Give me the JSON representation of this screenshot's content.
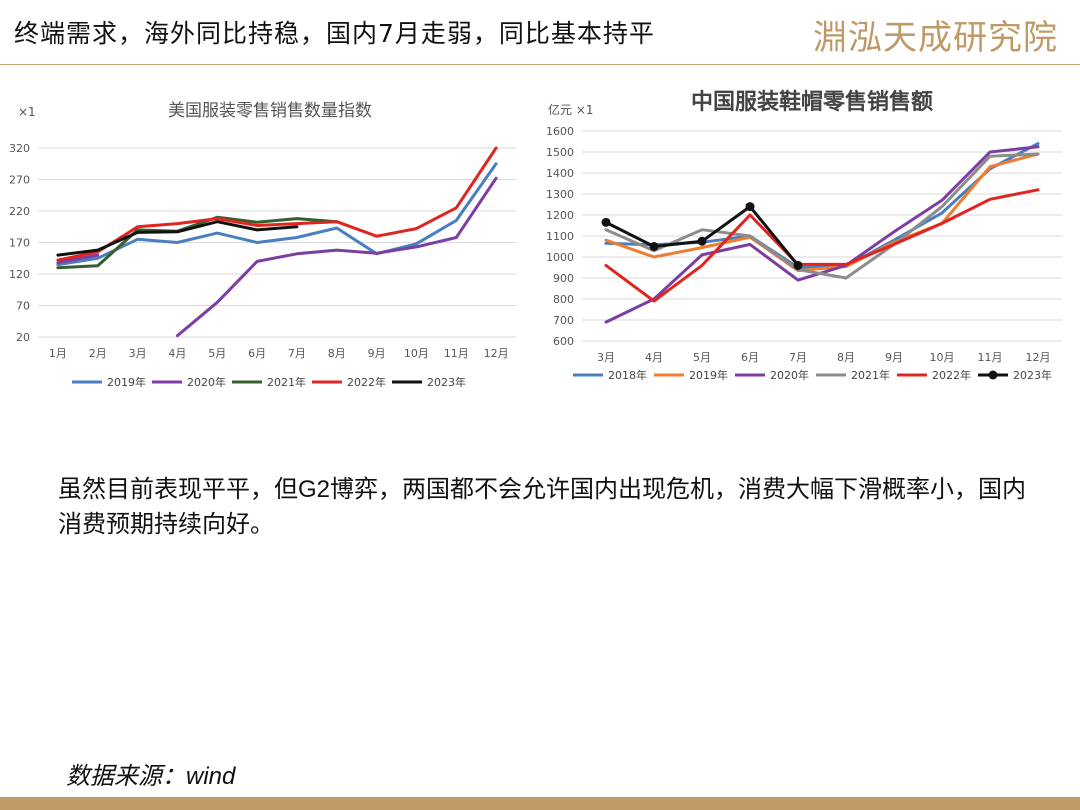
{
  "header": {
    "title": "终端需求，海外同比持稳，国内7月走弱，同比基本持平",
    "logo_text": "淵泓天成研究院",
    "accent_color": "#bf9a66"
  },
  "body_text": "虽然目前表现平平，但G2博弈，两国都不会允许国内出现危机，消费大幅下滑概率小，国内消费预期持续向好。",
  "source": "数据来源：wind",
  "chart_data": [
    {
      "type": "line",
      "title": "美国服装零售销售数量指数",
      "unit_label": "×1",
      "categories": [
        "1月",
        "2月",
        "3月",
        "4月",
        "5月",
        "6月",
        "7月",
        "8月",
        "9月",
        "10月",
        "11月",
        "12月"
      ],
      "ylim": [
        20,
        320
      ],
      "yticks": [
        20,
        70,
        120,
        170,
        220,
        270,
        320
      ],
      "grid": true,
      "legend_position": "bottom",
      "series": [
        {
          "name": "2019年",
          "color": "#4a7fbf",
          "values": [
            135,
            145,
            175,
            170,
            185,
            170,
            178,
            193,
            152,
            168,
            205,
            295
          ]
        },
        {
          "name": "2020年",
          "color": "#7d3ea3",
          "values": [
            138,
            150,
            null,
            22,
            75,
            140,
            152,
            158,
            153,
            163,
            178,
            272
          ]
        },
        {
          "name": "2021年",
          "color": "#375e2e",
          "values": [
            130,
            133,
            190,
            188,
            210,
            202,
            208,
            203,
            null,
            null,
            null,
            null
          ]
        },
        {
          "name": "2022年",
          "color": "#e0241f",
          "values": [
            142,
            155,
            195,
            200,
            208,
            197,
            200,
            203,
            180,
            192,
            225,
            320
          ]
        },
        {
          "name": "2023年",
          "color": "#111111",
          "values": [
            150,
            158,
            186,
            187,
            203,
            190,
            195,
            null,
            null,
            null,
            null,
            null
          ]
        }
      ]
    },
    {
      "type": "line",
      "title": "中国服装鞋帽零售销售额",
      "unit_label": "亿元 ×1",
      "categories": [
        "3月",
        "4月",
        "5月",
        "6月",
        "7月",
        "8月",
        "9月",
        "10月",
        "11月",
        "12月"
      ],
      "ylim": [
        600,
        1600
      ],
      "yticks": [
        600,
        700,
        800,
        900,
        1000,
        1100,
        1200,
        1300,
        1400,
        1500,
        1600
      ],
      "grid": true,
      "legend_position": "bottom",
      "series": [
        {
          "name": "2018年",
          "color": "#4a7fbf",
          "values": [
            1065,
            1058,
            1070,
            1100,
            950,
            955,
            1080,
            1210,
            1420,
            1540
          ]
        },
        {
          "name": "2019年",
          "color": "#ed7d31",
          "values": [
            1080,
            1000,
            1045,
            1095,
            935,
            955,
            1070,
            1160,
            1430,
            1490
          ]
        },
        {
          "name": "2020年",
          "color": "#7d3ea3",
          "values": [
            690,
            800,
            1010,
            1060,
            890,
            960,
            1120,
            1270,
            1500,
            1525
          ]
        },
        {
          "name": "2021年",
          "color": "#8c8c8c",
          "values": [
            1130,
            1030,
            1130,
            1100,
            940,
            900,
            1060,
            1240,
            1480,
            1490
          ]
        },
        {
          "name": "2022年",
          "color": "#e0241f",
          "values": [
            960,
            790,
            960,
            1200,
            965,
            965,
            1060,
            1160,
            1275,
            1320
          ]
        },
        {
          "name": "2023年",
          "color": "#111111",
          "marker": true,
          "values": [
            1165,
            1050,
            1075,
            1240,
            960,
            null,
            null,
            null,
            null,
            null
          ]
        }
      ]
    }
  ]
}
